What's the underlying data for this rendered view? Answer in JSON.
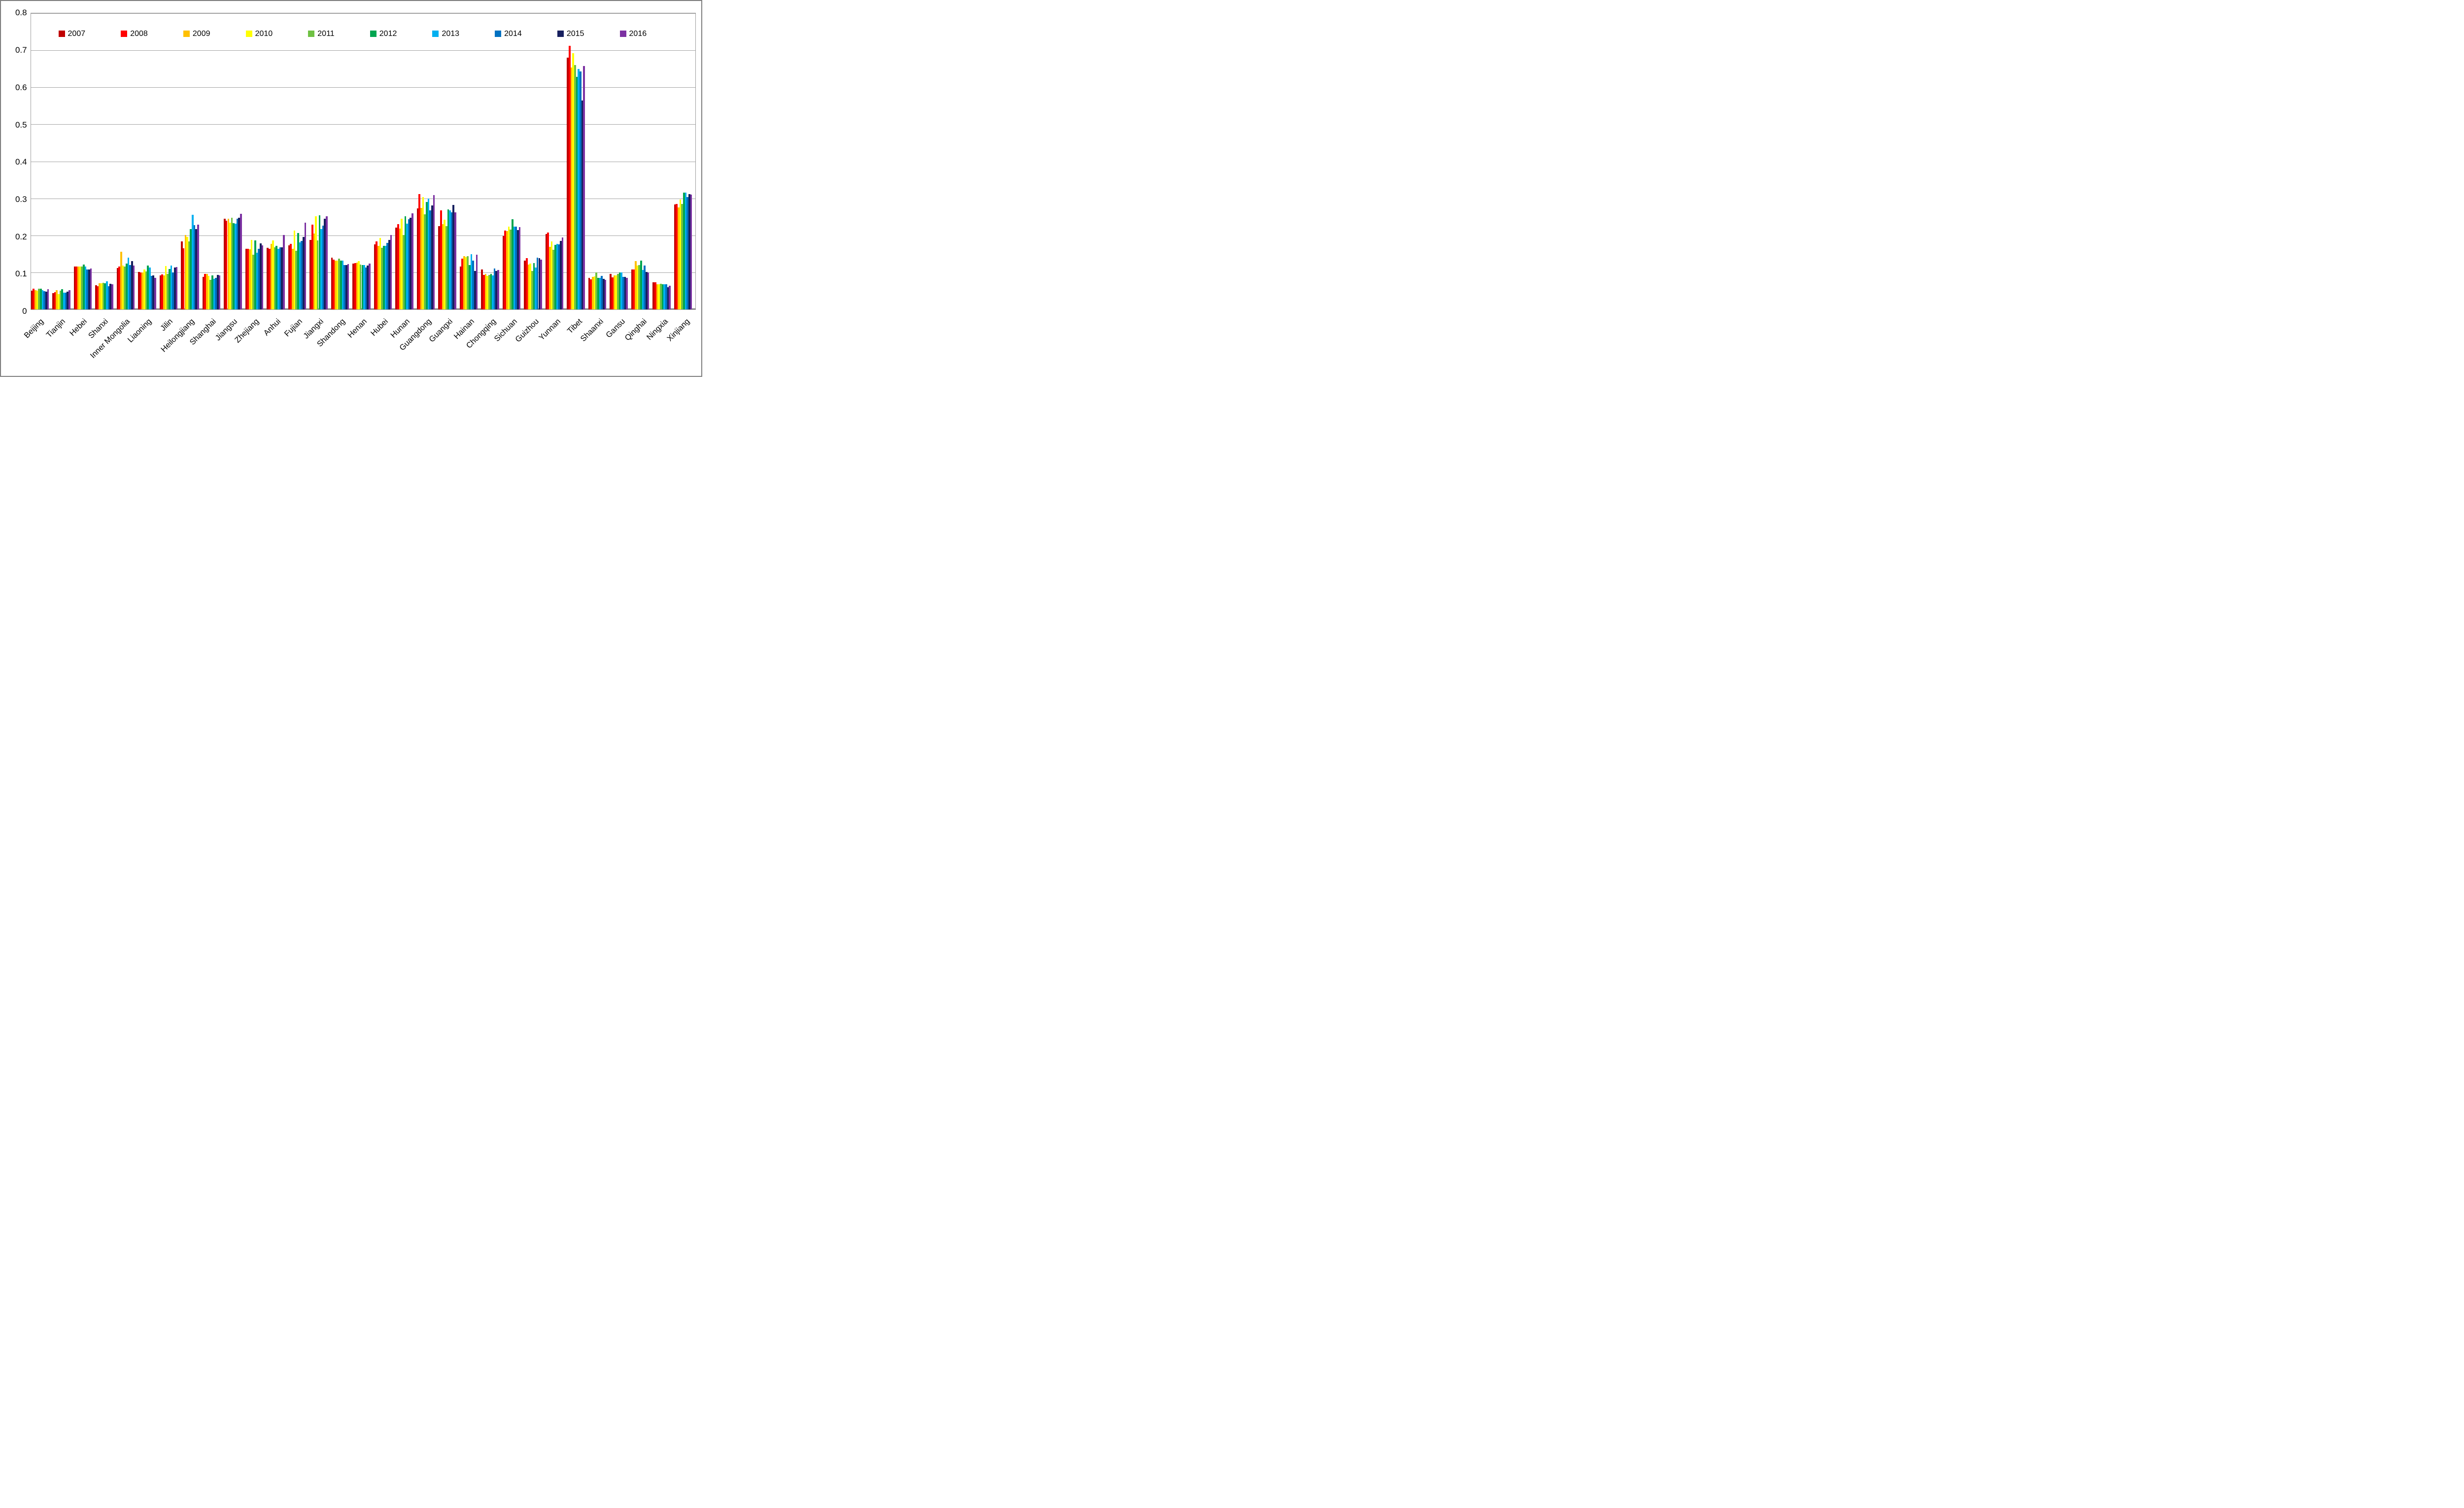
{
  "figure": {
    "border_color": "#7f7f7f",
    "background": "#ffffff",
    "gridline_color": "#a6a6a6"
  },
  "chart_data": {
    "type": "bar",
    "title": "",
    "xlabel": "",
    "ylabel": "",
    "ylim": [
      0,
      0.8
    ],
    "ytick_step": 0.1,
    "grid": true,
    "legend_position": "top-inside-horizontal",
    "ytick_labels": [
      "0",
      "0.1",
      "0.2",
      "0.3",
      "0.4",
      "0.5",
      "0.6",
      "0.7",
      "0.8"
    ],
    "categories": [
      "Beijing",
      "Tianjin",
      "Hebei",
      "Shanxi",
      "Inner Mongolia",
      "Liaoning",
      "Jilin",
      "Heilongjiang",
      "Shanghai",
      "Jiangsu",
      "Zhejiang",
      "Anhui",
      "Fujian",
      "Jiangxi",
      "Shandong",
      "Henan",
      "Hubei",
      "Hunan",
      "Guangdong",
      "Guangxi",
      "Hainan",
      "Chongqing",
      "Sichuan",
      "Guizhou",
      "Yunnan",
      "Tibet",
      "Shaanxi",
      "Gansu",
      "Qinghai",
      "Ningxia",
      "Xinjiang"
    ],
    "series": [
      {
        "name": "2007",
        "color": "#c00000",
        "values": [
          0.05,
          0.044,
          0.115,
          0.065,
          0.112,
          0.101,
          0.092,
          0.183,
          0.087,
          0.245,
          0.163,
          0.166,
          0.173,
          0.187,
          0.139,
          0.123,
          0.175,
          0.221,
          0.273,
          0.225,
          0.116,
          0.108,
          0.198,
          0.131,
          0.204,
          0.68,
          0.085,
          0.095,
          0.108,
          0.073,
          0.283
        ]
      },
      {
        "name": "2008",
        "color": "#ff0000",
        "values": [
          0.055,
          0.046,
          0.116,
          0.062,
          0.116,
          0.099,
          0.094,
          0.165,
          0.096,
          0.24,
          0.163,
          0.164,
          0.177,
          0.229,
          0.134,
          0.125,
          0.184,
          0.23,
          0.312,
          0.267,
          0.137,
          0.093,
          0.213,
          0.138,
          0.208,
          0.712,
          0.081,
          0.086,
          0.108,
          0.073,
          0.285
        ]
      },
      {
        "name": "2009",
        "color": "#ffc000",
        "values": [
          0.051,
          0.051,
          0.115,
          0.07,
          0.156,
          0.099,
          0.092,
          0.201,
          0.096,
          0.245,
          0.162,
          0.177,
          0.163,
          0.205,
          0.132,
          0.126,
          0.172,
          0.218,
          0.274,
          0.23,
          0.144,
          0.096,
          0.212,
          0.121,
          0.169,
          0.654,
          0.087,
          0.091,
          0.13,
          0.068,
          0.275
        ]
      },
      {
        "name": "2010",
        "color": "#ffff00",
        "values": [
          0.05,
          0.041,
          0.115,
          0.07,
          0.118,
          0.108,
          0.117,
          0.195,
          0.09,
          0.234,
          0.187,
          0.186,
          0.213,
          0.252,
          0.132,
          0.13,
          0.193,
          0.245,
          0.303,
          0.242,
          0.141,
          0.09,
          0.223,
          0.124,
          0.184,
          0.692,
          0.089,
          0.091,
          0.118,
          0.068,
          0.297
        ]
      },
      {
        "name": "2011",
        "color": "#6fc143",
        "values": [
          0.056,
          0.05,
          0.116,
          0.072,
          0.116,
          0.102,
          0.096,
          0.184,
          0.079,
          0.248,
          0.147,
          0.168,
          0.158,
          0.186,
          0.137,
          0.121,
          0.166,
          0.201,
          0.257,
          0.225,
          0.143,
          0.093,
          0.215,
          0.103,
          0.161,
          0.66,
          0.099,
          0.095,
          0.12,
          0.069,
          0.285
        ]
      },
      {
        "name": "2012",
        "color": "#00a550",
        "values": [
          0.056,
          0.054,
          0.121,
          0.07,
          0.123,
          0.118,
          0.109,
          0.217,
          0.092,
          0.233,
          0.186,
          0.172,
          0.206,
          0.254,
          0.131,
          0.12,
          0.172,
          0.251,
          0.29,
          0.27,
          0.12,
          0.095,
          0.244,
          0.125,
          0.174,
          0.628,
          0.085,
          0.099,
          0.132,
          0.067,
          0.316
        ]
      },
      {
        "name": "2013",
        "color": "#00b0f0",
        "values": [
          0.052,
          0.045,
          0.115,
          0.075,
          0.139,
          0.113,
          0.118,
          0.255,
          0.082,
          0.232,
          0.153,
          0.163,
          0.181,
          0.217,
          0.131,
          0.12,
          0.172,
          0.232,
          0.299,
          0.268,
          0.149,
          0.092,
          0.224,
          0.113,
          0.177,
          0.65,
          0.085,
          0.099,
          0.106,
          0.068,
          0.315
        ]
      },
      {
        "name": "2014",
        "color": "#0071c1",
        "values": [
          0.049,
          0.045,
          0.108,
          0.062,
          0.119,
          0.09,
          0.1,
          0.227,
          0.085,
          0.245,
          0.164,
          0.167,
          0.185,
          0.226,
          0.119,
          0.113,
          0.179,
          0.244,
          0.267,
          0.262,
          0.131,
          0.11,
          0.224,
          0.14,
          0.176,
          0.643,
          0.09,
          0.088,
          0.118,
          0.067,
          0.303
        ]
      },
      {
        "name": "2015",
        "color": "#17205f",
        "values": [
          0.047,
          0.048,
          0.107,
          0.069,
          0.13,
          0.092,
          0.113,
          0.217,
          0.093,
          0.248,
          0.178,
          0.167,
          0.196,
          0.245,
          0.119,
          0.118,
          0.187,
          0.247,
          0.281,
          0.282,
          0.104,
          0.103,
          0.214,
          0.138,
          0.185,
          0.564,
          0.082,
          0.088,
          0.101,
          0.06,
          0.311
        ]
      },
      {
        "name": "2016",
        "color": "#7c31a2",
        "values": [
          0.054,
          0.051,
          0.11,
          0.067,
          0.118,
          0.085,
          0.114,
          0.229,
          0.092,
          0.258,
          0.173,
          0.201,
          0.234,
          0.251,
          0.122,
          0.123,
          0.201,
          0.26,
          0.309,
          0.262,
          0.148,
          0.106,
          0.222,
          0.134,
          0.194,
          0.658,
          0.079,
          0.085,
          0.099,
          0.063,
          0.31
        ]
      }
    ]
  }
}
